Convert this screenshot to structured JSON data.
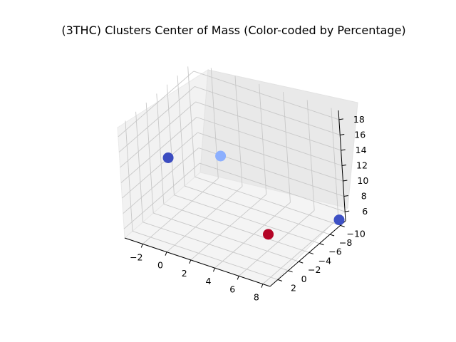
{
  "chart_data": {
    "type": "scatter",
    "projection": "3d",
    "title": "(3THC) Clusters Center of Mass (Color-coded by Percentage)",
    "xlabel": "",
    "ylabel": "",
    "zlabel": "",
    "grid": true,
    "legend": "none",
    "x_ticks": [
      "−2",
      "0",
      "2",
      "4",
      "6",
      "8"
    ],
    "y_ticks": [
      "−10",
      "−8",
      "−6",
      "−4",
      "−2",
      "0",
      "2"
    ],
    "z_ticks": [
      "6",
      "8",
      "10",
      "12",
      "14",
      "16",
      "18"
    ],
    "xlim": [
      -3.5,
      8.6
    ],
    "ylim": [
      -11,
      3.5
    ],
    "zlim": [
      4.8,
      19.2
    ],
    "colormap": "coolwarm",
    "points": [
      {
        "x": -2.4,
        "y": -3.0,
        "z": 12.0,
        "color": "#3b4cc0"
      },
      {
        "x": 8.2,
        "y": -10.7,
        "z": 4.9,
        "color": "#3e51c5"
      },
      {
        "x": 4.5,
        "y": 2.2,
        "z": 18.9,
        "color": "#8caffe"
      },
      {
        "x": 7.8,
        "y": 1.5,
        "z": 10.0,
        "color": "#b40426"
      }
    ]
  }
}
